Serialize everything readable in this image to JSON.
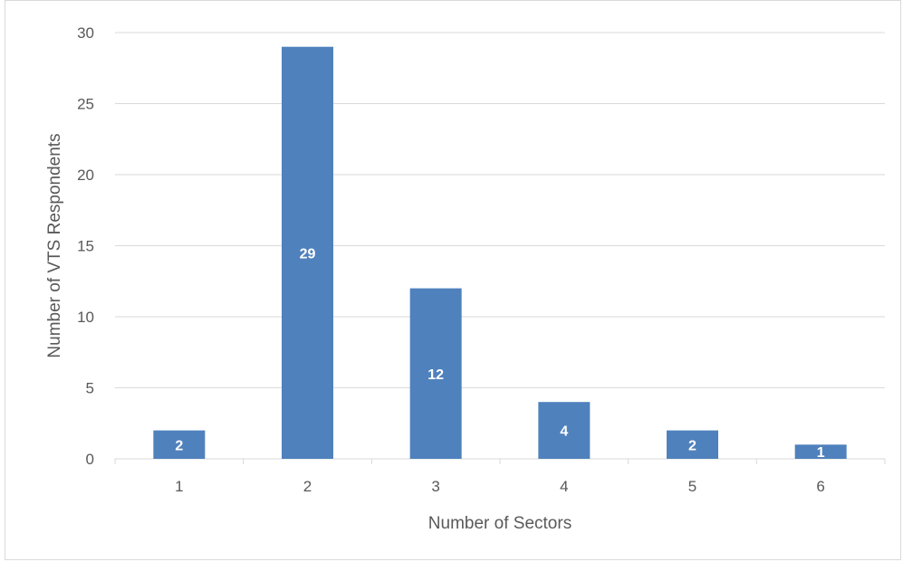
{
  "chart_data": {
    "type": "bar",
    "title": "",
    "xlabel": "Number of Sectors",
    "ylabel": "Number of VTS Respondents",
    "categories": [
      "1",
      "2",
      "3",
      "4",
      "5",
      "6"
    ],
    "values": [
      2,
      29,
      12,
      4,
      2,
      1
    ],
    "data_labels": [
      "2",
      "29",
      "12",
      "4",
      "2",
      "1"
    ],
    "ylim": [
      0,
      30
    ],
    "yticks": [
      "0",
      "5",
      "10",
      "15",
      "20",
      "25",
      "30"
    ],
    "grid": true,
    "legend": "none",
    "bar_color": "#4f81bd",
    "gridline_color": "#d9d9d9"
  }
}
